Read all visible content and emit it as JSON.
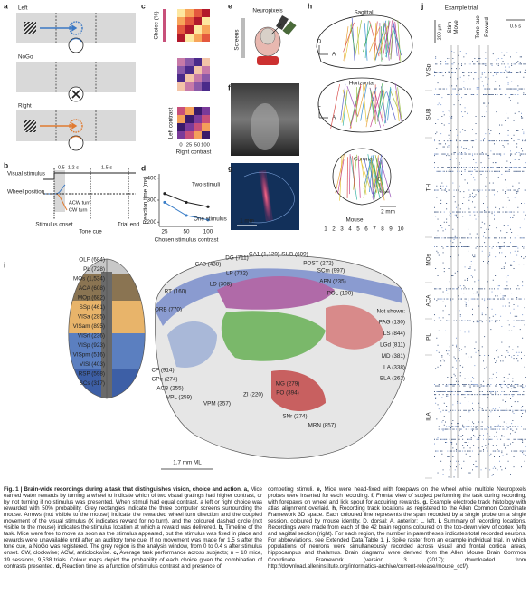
{
  "panels": {
    "a": {
      "label": "a",
      "left": "Left",
      "nogo": "NoGo",
      "right": "Right",
      "left_color": "#3b78c4",
      "right_color": "#e07a30"
    },
    "b": {
      "label": "b",
      "visual": "Visual stimulus",
      "wheel": "Wheel position",
      "delay": "0.5–1.2 s",
      "wait": "1.5 s",
      "acw": "ACW turn",
      "cw": "CW turn",
      "onset": "Stimulus onset",
      "tone": "Tone cue",
      "end": "Trial end"
    },
    "c": {
      "label": "c",
      "colorbar": "Choice (%)",
      "ylabel": "Left contrast",
      "xlabel": "Right contrast",
      "xticks": [
        0,
        25,
        50,
        100
      ]
    },
    "d": {
      "label": "d",
      "ylabel": "Reaction time (ms)",
      "xlabel": "Chosen stimulus contrast",
      "categories": [
        "25",
        "50",
        "100"
      ],
      "ylim": [
        180,
        420
      ],
      "yticks": [
        200,
        300,
        400
      ],
      "series": [
        {
          "name": "Two stimuli",
          "color": "#222222",
          "values": [
            330,
            290,
            270
          ]
        },
        {
          "name": "One stimulus",
          "color": "#3a7ec8",
          "values": [
            290,
            230,
            210
          ]
        }
      ]
    },
    "e": {
      "label": "e",
      "probe": "Neuropixels",
      "screens": "Screens"
    },
    "f": {
      "label": "f"
    },
    "g": {
      "label": "g",
      "scale": "1 mm"
    },
    "h": {
      "label": "h",
      "sagittal": "Sagittal",
      "horizontal": "Horizontal",
      "coronal": "Coronal",
      "d": "D",
      "a": "A",
      "l": "L",
      "scale": "2 mm",
      "mouse": "Mouse",
      "mice": [
        1,
        2,
        3,
        4,
        5,
        6,
        7,
        8,
        9,
        10
      ],
      "colors": [
        "#e8a33a",
        "#e6c83c",
        "#9cc04a",
        "#4cae5a",
        "#3cb4a8",
        "#3a8fd0",
        "#5b63c8",
        "#9a57b8",
        "#c8478e",
        "#d9534f"
      ]
    },
    "i": {
      "label": "i",
      "cortex": [
        {
          "text": "OLF (684)",
          "color": "#9a9a9a"
        },
        {
          "text": "PL (728)",
          "color": "#6e5a3a"
        },
        {
          "text": "MOs (1,534)",
          "color": "#444444"
        },
        {
          "text": "ACA (608)",
          "color": "#444444"
        },
        {
          "text": "MOp (682)",
          "color": "#e0952e"
        },
        {
          "text": "SSp (461)",
          "color": "#eab86a"
        },
        {
          "text": "VISa (285)",
          "color": "#5b7fc0"
        },
        {
          "text": "VISam (895)",
          "color": "#3d5fa6"
        },
        {
          "text": "VISrl (236)",
          "color": "#7f9ad0"
        },
        {
          "text": "VISp (923)",
          "color": "#2c3e78"
        },
        {
          "text": "VISpm (516)",
          "color": "#4a67b0"
        },
        {
          "text": "VISl (403)",
          "color": "#3d5fa6"
        },
        {
          "text": "RSP (598)",
          "color": "#333333"
        },
        {
          "text": "SCs (317)",
          "color": "#333333"
        }
      ],
      "sagittal": [
        {
          "text": "CA3 (438)",
          "color": "#8a2a6a"
        },
        {
          "text": "DG (711)",
          "color": "#7a3a8a"
        },
        {
          "text": "CA1 (1,129)",
          "color": "#a0306a"
        },
        {
          "text": "SUB (609)",
          "color": "#c05aa0"
        },
        {
          "text": "POST (272)",
          "color": "#c870b0"
        },
        {
          "text": "LP (732)",
          "color": "#444444"
        },
        {
          "text": "LD (308)",
          "color": "#444444"
        },
        {
          "text": "RT (160)",
          "color": "#5a9a4a"
        },
        {
          "text": "ORB (770)",
          "color": "#d08a2a"
        },
        {
          "text": "SCm (997)",
          "color": "#8a2a2a"
        },
        {
          "text": "APN (235)",
          "color": "#c04040"
        },
        {
          "text": "POL (190)",
          "color": "#3a8a3a"
        },
        {
          "text": "CP (914)",
          "color": "#333333"
        },
        {
          "text": "GPe (274)",
          "color": "#3a5aa0"
        },
        {
          "text": "ACB (255)",
          "color": "#4a6ab0"
        },
        {
          "text": "VPL (259)",
          "color": "#3a9a4a"
        },
        {
          "text": "VPM (357)",
          "color": "#3a9a4a"
        },
        {
          "text": "ZI (220)",
          "color": "#555555"
        },
        {
          "text": "MG (279)",
          "color": "#4aa04a"
        },
        {
          "text": "PO (394)",
          "color": "#3a8a3a"
        },
        {
          "text": "SNr (274)",
          "color": "#444444"
        },
        {
          "text": "MRN (857)",
          "color": "#c03030"
        }
      ],
      "not_shown_title": "Not shown:",
      "not_shown": [
        {
          "text": "PAG (130)",
          "color": "#d05050"
        },
        {
          "text": "LS (844)",
          "color": "#4a6ab0"
        },
        {
          "text": "LGd (811)",
          "color": "#333333"
        },
        {
          "text": "MD (381)",
          "color": "#3a8a3a"
        },
        {
          "text": "ILA (338)",
          "color": "#8a6a3a"
        },
        {
          "text": "BLA (261)",
          "color": "#aaaaaa"
        }
      ],
      "scale": "1.7 mm ML"
    },
    "j": {
      "label": "j",
      "title": "Example trial",
      "events": [
        "Stim",
        "Move",
        "Tone cue",
        "Reward"
      ],
      "depth": "200 µm",
      "time": "0.5 s",
      "regions": [
        "VISp",
        "SUB",
        "TH",
        "MOs",
        "ACA",
        "PL",
        "ILA"
      ]
    }
  },
  "caption": {
    "title": "Fig. 1 | Brain-wide recordings during a task that distinguishes vision, choice and action.",
    "left": [
      {
        "label": "a,",
        "text": " Mice earned water rewards by turning a wheel to indicate which of two visual gratings had higher contrast, or by not turning if no stimulus was presented. When stimuli had equal contrast, a left or right choice was rewarded with 50% probability. Grey rectangles indicate the three computer screens surrounding the mouse. Arrows (not visible to the mouse) indicate the rewarded wheel turn direction and the coupled movement of the visual stimulus (X indicates reward for no turn), and the coloured dashed circle (not visible to the mouse) indicates the stimulus location at which a reward was delivered."
      },
      {
        "label": "b,",
        "text": " Timeline of the task. Mice were free to move as soon as the stimulus appeared, but the stimulus was fixed in place and rewards were unavailable until after an auditory tone cue. If no movement was made for 1.5 s after the tone cue, a NoGo was registered. The grey region is the analysis window, from 0 to 0.4 s after stimulus onset. CW, clockwise; ACW, anticlockwise."
      },
      {
        "label": "c,",
        "text": " Average task performance across subjects; n = 10 mice, 39 sessions, 9,538 trials. Colour maps depict the probability of each choice given the combination of contrasts presented."
      },
      {
        "label": "d,",
        "text": " Reaction time as a function of stimulus contrast and presence of"
      }
    ],
    "right": [
      {
        "text": "competing stimuli."
      },
      {
        "label": "e,",
        "text": " Mice were head-fixed with forepaws on the wheel while multiple Neuropixels probes were inserted for each recording."
      },
      {
        "label": "f,",
        "text": " Frontal view of subject performing the task during recording, with forepaws on wheel and lick spout for acquiring rewards."
      },
      {
        "label": "g,",
        "text": " Example electrode track histology with atlas alignment overlaid."
      },
      {
        "label": "h,",
        "text": " Recording track locations as registered to the Allen Common Coordinate Framework 3D space. Each coloured line represents the span recorded by a single probe on a single session, coloured by mouse identity. D, dorsal; A, anterior; L, left."
      },
      {
        "label": "i,",
        "text": " Summary of recording locations. Recordings were made from each of the 42 brain regions coloured on the top-down view of cortex (left) and sagittal section (right). For each region, the number in parentheses indicates total recorded neurons. For abbreviations, see Extended Data Table 1."
      },
      {
        "label": "j,",
        "text": " Spike raster from an example individual trial, in which populations of neurons were simultaneously recorded across visual and frontal cortical areas, hippocampus and thalamus. Brain diagrams were derived from the Allen Mouse Brain Common Coordinate Framework (version 3 (2017); downloaded from http://download.alleninstitute.org/informatics-archive/current-release/mouse_ccf/)."
      }
    ]
  }
}
